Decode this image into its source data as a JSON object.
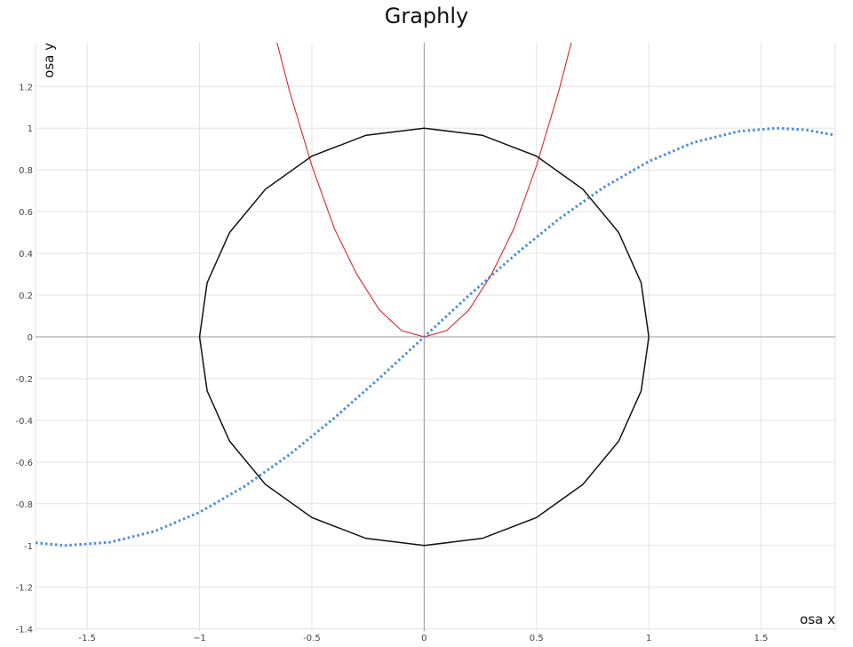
{
  "chart_data": {
    "type": "line",
    "title": "Graphly",
    "xlabel": "osa x",
    "ylabel": "osa y",
    "xlim": [
      -1.73,
      1.83
    ],
    "ylim": [
      -1.41,
      1.41
    ],
    "xticks": [
      -1.5,
      -1,
      -0.5,
      0,
      0.5,
      1,
      1.5
    ],
    "xtick_labels": [
      "-1.5",
      "−1",
      "-0.5",
      "0",
      "0.5",
      "1",
      "1.5"
    ],
    "yticks": [
      -1.4,
      -1.2,
      -1,
      -0.8,
      -0.6,
      -0.4,
      -0.2,
      0,
      0.2,
      0.4,
      0.6,
      0.8,
      1,
      1.2
    ],
    "ytick_labels": [
      "-1.4",
      "-1.2",
      "-1",
      "-0.8",
      "-0.6",
      "-0.4",
      "-0.2",
      "0",
      "0.2",
      "0.4",
      "0.6",
      "0.8",
      "1",
      "1.2"
    ],
    "grid": true,
    "series": [
      {
        "style": "solid",
        "color": "#e0242a",
        "x": [
          -0.66,
          -0.6,
          -0.5,
          -0.4,
          -0.3,
          -0.2,
          -0.1,
          0,
          0.1,
          0.2,
          0.3,
          0.4,
          0.5,
          0.6,
          0.66
        ],
        "y": [
          1.43,
          1.18,
          0.82,
          0.52,
          0.3,
          0.13,
          0.03,
          0,
          0.03,
          0.13,
          0.3,
          0.52,
          0.82,
          1.18,
          1.43
        ]
      },
      {
        "style": "solid",
        "color": "#111111",
        "x": [
          1,
          0.966,
          0.866,
          0.707,
          0.5,
          0.259,
          0,
          -0.259,
          -0.5,
          -0.707,
          -0.866,
          -0.966,
          -1,
          -0.966,
          -0.866,
          -0.707,
          -0.5,
          -0.259,
          0,
          0.259,
          0.5,
          0.707,
          0.866,
          0.966,
          1
        ],
        "y": [
          0,
          0.259,
          0.5,
          0.707,
          0.866,
          0.966,
          1,
          0.966,
          0.866,
          0.707,
          0.5,
          0.259,
          0,
          -0.259,
          -0.5,
          -0.707,
          -0.866,
          -0.966,
          -1,
          -0.966,
          -0.866,
          -0.707,
          -0.5,
          -0.259,
          0
        ]
      },
      {
        "style": "dotted",
        "color": "#4a90d9",
        "x": [
          -1.73,
          -1.6,
          -1.4,
          -1.2,
          -1.0,
          -0.8,
          -0.6,
          -0.4,
          -0.2,
          0,
          0.2,
          0.4,
          0.6,
          0.8,
          1.0,
          1.2,
          1.4,
          1.57,
          1.7,
          1.83
        ],
        "y": [
          -0.987,
          -1.0,
          -0.985,
          -0.932,
          -0.841,
          -0.717,
          -0.565,
          -0.389,
          -0.199,
          0,
          0.199,
          0.389,
          0.565,
          0.717,
          0.841,
          0.932,
          0.985,
          1.0,
          0.992,
          0.966
        ]
      }
    ]
  }
}
